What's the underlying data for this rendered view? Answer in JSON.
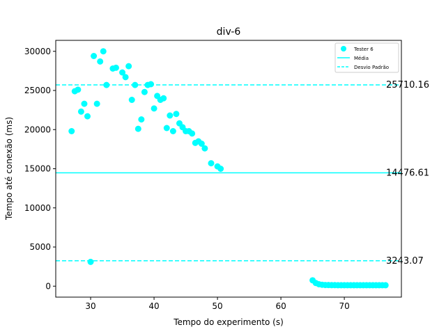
{
  "chart_data": {
    "type": "scatter",
    "title": "div-6",
    "xlabel": "Tempo do experimento (s)",
    "ylabel": "Tempo até conexão (ms)",
    "xlim": [
      24.5,
      79.0
    ],
    "ylim": [
      -1400,
      31400
    ],
    "xticks": [
      30,
      40,
      50,
      60,
      70
    ],
    "yticks": [
      0,
      5000,
      10000,
      15000,
      20000,
      25000,
      30000
    ],
    "grid": false,
    "legend_position": "upper-right",
    "colors": {
      "series": "#00ffff",
      "axes": "#000000"
    },
    "series": [
      {
        "name": "Tester 6",
        "marker": "circle",
        "points": [
          [
            27.0,
            19800
          ],
          [
            27.5,
            24900
          ],
          [
            28.0,
            25100
          ],
          [
            28.5,
            22300
          ],
          [
            29.0,
            23300
          ],
          [
            29.5,
            21700
          ],
          [
            30.0,
            3100
          ],
          [
            30.5,
            29400
          ],
          [
            31.0,
            23300
          ],
          [
            31.5,
            28700
          ],
          [
            32.0,
            30000
          ],
          [
            32.5,
            25700
          ],
          [
            33.5,
            27800
          ],
          [
            34.0,
            27900
          ],
          [
            35.0,
            27300
          ],
          [
            35.5,
            26700
          ],
          [
            36.0,
            28100
          ],
          [
            36.5,
            23800
          ],
          [
            37.0,
            25700
          ],
          [
            37.5,
            20100
          ],
          [
            38.0,
            21300
          ],
          [
            38.5,
            24800
          ],
          [
            39.0,
            25700
          ],
          [
            39.5,
            25800
          ],
          [
            40.0,
            22700
          ],
          [
            40.5,
            24300
          ],
          [
            41.0,
            23800
          ],
          [
            41.5,
            24000
          ],
          [
            42.0,
            20200
          ],
          [
            42.5,
            21800
          ],
          [
            43.0,
            19800
          ],
          [
            43.5,
            22000
          ],
          [
            44.0,
            20800
          ],
          [
            44.5,
            20300
          ],
          [
            45.0,
            19800
          ],
          [
            45.5,
            19800
          ],
          [
            46.0,
            19500
          ],
          [
            46.5,
            18300
          ],
          [
            47.0,
            18500
          ],
          [
            47.5,
            18200
          ],
          [
            48.0,
            17600
          ],
          [
            49.0,
            15700
          ],
          [
            50.0,
            15300
          ],
          [
            50.5,
            15000
          ],
          [
            65.0,
            750
          ],
          [
            65.5,
            400
          ],
          [
            66.0,
            250
          ],
          [
            66.5,
            180
          ],
          [
            67.0,
            150
          ],
          [
            67.5,
            140
          ],
          [
            68.0,
            130
          ],
          [
            68.5,
            130
          ],
          [
            69.0,
            120
          ],
          [
            69.5,
            120
          ],
          [
            70.0,
            120
          ],
          [
            70.5,
            120
          ],
          [
            71.0,
            120
          ],
          [
            71.5,
            120
          ],
          [
            72.0,
            120
          ],
          [
            72.5,
            120
          ],
          [
            73.0,
            120
          ],
          [
            73.5,
            120
          ],
          [
            74.0,
            120
          ],
          [
            74.5,
            120
          ],
          [
            75.0,
            120
          ],
          [
            75.5,
            120
          ],
          [
            76.0,
            120
          ],
          [
            76.5,
            120
          ]
        ]
      }
    ],
    "hlines": [
      {
        "name": "Média",
        "y": 14476.61,
        "label": "14476.61",
        "style": "solid"
      },
      {
        "name": "Desvio Padrão",
        "y": 25710.16,
        "label": "25710.16",
        "style": "dashed"
      },
      {
        "name": "",
        "y": 3243.07,
        "label": "3243.07",
        "style": "dashed"
      }
    ],
    "legend": [
      {
        "label": "Tester 6",
        "kind": "marker"
      },
      {
        "label": "Média",
        "kind": "solid"
      },
      {
        "label": "Desvio Padrão",
        "kind": "dashed"
      }
    ]
  }
}
